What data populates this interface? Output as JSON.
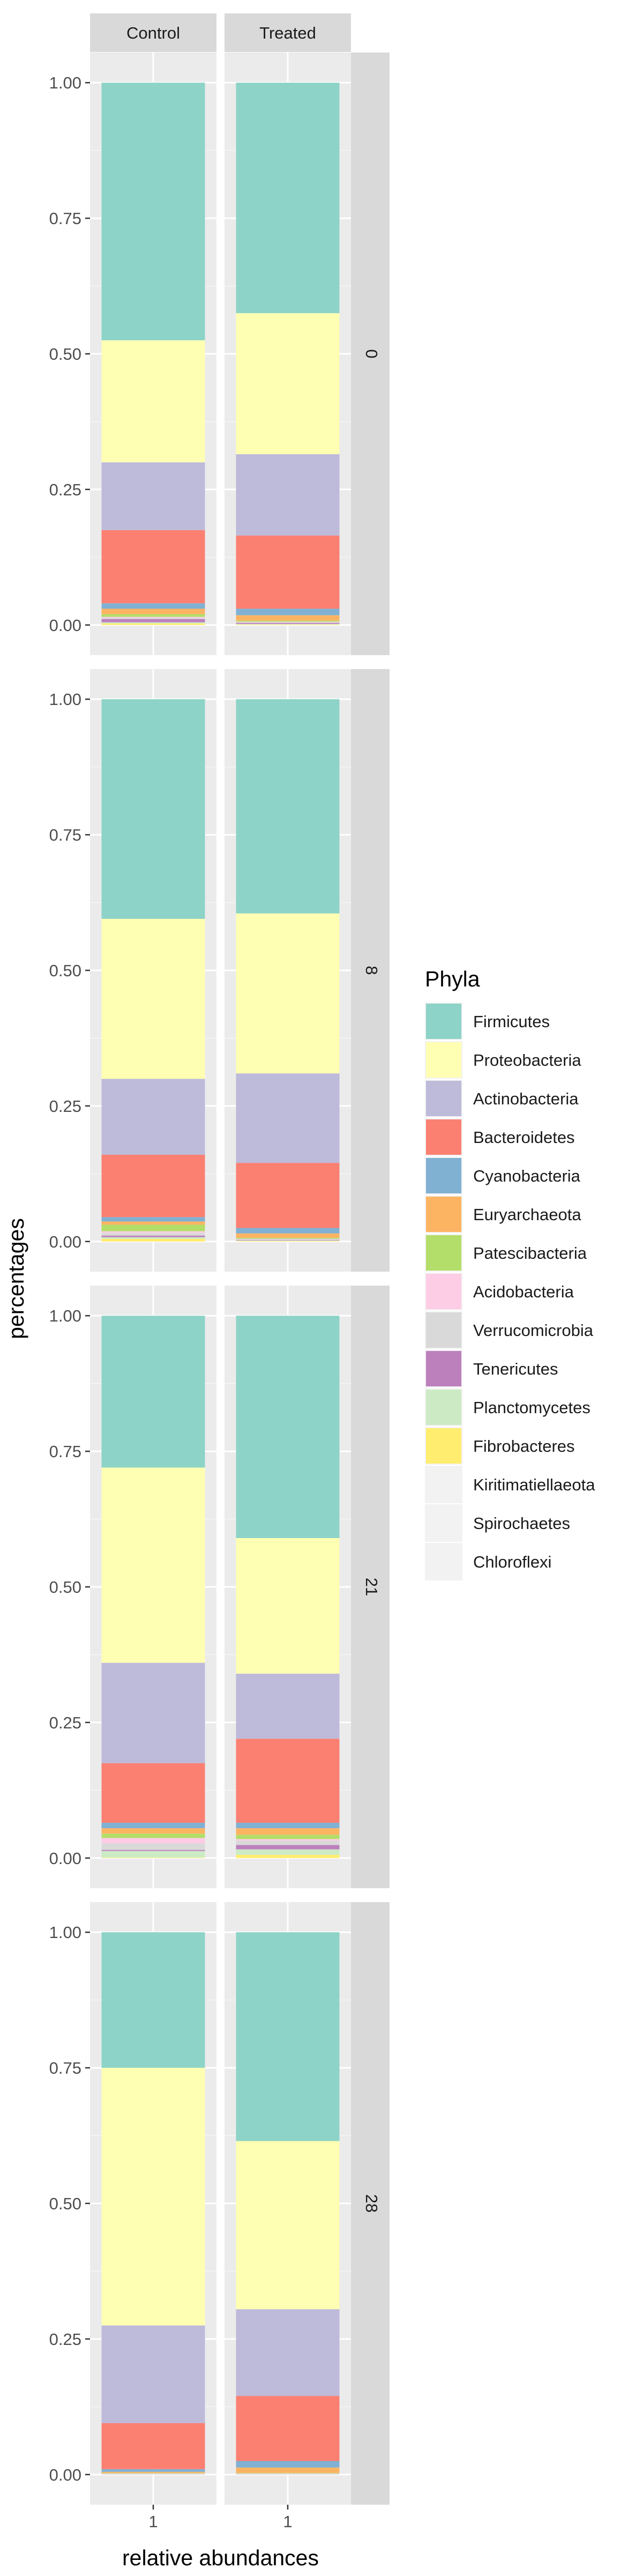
{
  "chart_data": {
    "type": "bar",
    "stacked": true,
    "facet_columns": [
      "Control",
      "Treated"
    ],
    "facet_rows": [
      "0",
      "8",
      "21",
      "28"
    ],
    "x_tick": "1",
    "xlabel": "relative abundances",
    "ylabel": "percentages",
    "ylim": [
      0,
      1
    ],
    "yticks": [
      "0.00",
      "0.25",
      "0.50",
      "0.75",
      "1.00"
    ],
    "legend": {
      "title": "Phyla",
      "placement": "right",
      "items": [
        {
          "name": "Firmicutes",
          "color": "#8dd3c7"
        },
        {
          "name": "Proteobacteria",
          "color": "#ffffb3"
        },
        {
          "name": "Actinobacteria",
          "color": "#bebada"
        },
        {
          "name": "Bacteroidetes",
          "color": "#fb8072"
        },
        {
          "name": "Cyanobacteria",
          "color": "#80b1d3"
        },
        {
          "name": "Euryarchaeota",
          "color": "#fdb462"
        },
        {
          "name": "Patescibacteria",
          "color": "#b3de69"
        },
        {
          "name": "Acidobacteria",
          "color": "#fccde5"
        },
        {
          "name": "Verrucomicrobia",
          "color": "#d9d9d9"
        },
        {
          "name": "Tenericutes",
          "color": "#bc80bd"
        },
        {
          "name": "Planctomycetes",
          "color": "#ccebc5"
        },
        {
          "name": "Fibrobacteres",
          "color": "#ffed6f"
        },
        {
          "name": "Kiritimatiellaeota",
          "color": "#f2f2f2"
        },
        {
          "name": "Spirochaetes",
          "color": "#f2f2f2"
        },
        {
          "name": "Chloroflexi",
          "color": "#f2f2f2"
        }
      ]
    },
    "grid": true,
    "panels": [
      {
        "row": "0",
        "column": "Control",
        "values": {
          "Firmicutes": 0.475,
          "Proteobacteria": 0.225,
          "Actinobacteria": 0.125,
          "Bacteroidetes": 0.135,
          "Cyanobacteria": 0.01,
          "Euryarchaeota": 0.01,
          "Patescibacteria": 0.005,
          "Acidobacteria": 0.002,
          "Verrucomicrobia": 0.002,
          "Tenericutes": 0.006,
          "Planctomycetes": 0.002,
          "Fibrobacteres": 0.003
        }
      },
      {
        "row": "0",
        "column": "Treated",
        "values": {
          "Firmicutes": 0.425,
          "Proteobacteria": 0.26,
          "Actinobacteria": 0.15,
          "Bacteroidetes": 0.135,
          "Cyanobacteria": 0.012,
          "Euryarchaeota": 0.01,
          "Patescibacteria": 0.002,
          "Acidobacteria": 0.001,
          "Verrucomicrobia": 0.001,
          "Tenericutes": 0.002,
          "Planctomycetes": 0.001,
          "Fibrobacteres": 0.001
        }
      },
      {
        "row": "8",
        "column": "Control",
        "values": {
          "Firmicutes": 0.405,
          "Proteobacteria": 0.295,
          "Actinobacteria": 0.14,
          "Bacteroidetes": 0.115,
          "Cyanobacteria": 0.008,
          "Euryarchaeota": 0.006,
          "Patescibacteria": 0.012,
          "Acidobacteria": 0.003,
          "Verrucomicrobia": 0.005,
          "Tenericutes": 0.003,
          "Planctomycetes": 0.003,
          "Fibrobacteres": 0.005
        }
      },
      {
        "row": "8",
        "column": "Treated",
        "values": {
          "Firmicutes": 0.395,
          "Proteobacteria": 0.295,
          "Actinobacteria": 0.165,
          "Bacteroidetes": 0.12,
          "Cyanobacteria": 0.01,
          "Euryarchaeota": 0.008,
          "Patescibacteria": 0.002,
          "Acidobacteria": 0.001,
          "Verrucomicrobia": 0.001,
          "Tenericutes": 0.001,
          "Planctomycetes": 0.001,
          "Fibrobacteres": 0.001
        }
      },
      {
        "row": "21",
        "column": "Control",
        "values": {
          "Firmicutes": 0.28,
          "Proteobacteria": 0.36,
          "Actinobacteria": 0.185,
          "Bacteroidetes": 0.11,
          "Cyanobacteria": 0.01,
          "Euryarchaeota": 0.01,
          "Patescibacteria": 0.008,
          "Acidobacteria": 0.01,
          "Verrucomicrobia": 0.012,
          "Tenericutes": 0.002,
          "Planctomycetes": 0.012,
          "Fibrobacteres": 0.001
        }
      },
      {
        "row": "21",
        "column": "Treated",
        "values": {
          "Firmicutes": 0.41,
          "Proteobacteria": 0.25,
          "Actinobacteria": 0.12,
          "Bacteroidetes": 0.155,
          "Cyanobacteria": 0.01,
          "Euryarchaeota": 0.012,
          "Patescibacteria": 0.008,
          "Acidobacteria": 0.003,
          "Verrucomicrobia": 0.008,
          "Tenericutes": 0.008,
          "Planctomycetes": 0.01,
          "Fibrobacteres": 0.006
        }
      },
      {
        "row": "28",
        "column": "Control",
        "values": {
          "Firmicutes": 0.25,
          "Proteobacteria": 0.475,
          "Actinobacteria": 0.18,
          "Bacteroidetes": 0.085,
          "Cyanobacteria": 0.005,
          "Euryarchaeota": 0.002,
          "Patescibacteria": 0.001,
          "Acidobacteria": 0.001,
          "Verrucomicrobia": 0.001
        }
      },
      {
        "row": "28",
        "column": "Treated",
        "values": {
          "Firmicutes": 0.385,
          "Proteobacteria": 0.31,
          "Actinobacteria": 0.16,
          "Bacteroidetes": 0.12,
          "Cyanobacteria": 0.012,
          "Euryarchaeota": 0.01,
          "Patescibacteria": 0.001,
          "Acidobacteria": 0.001,
          "Verrucomicrobia": 0.001
        }
      }
    ]
  }
}
